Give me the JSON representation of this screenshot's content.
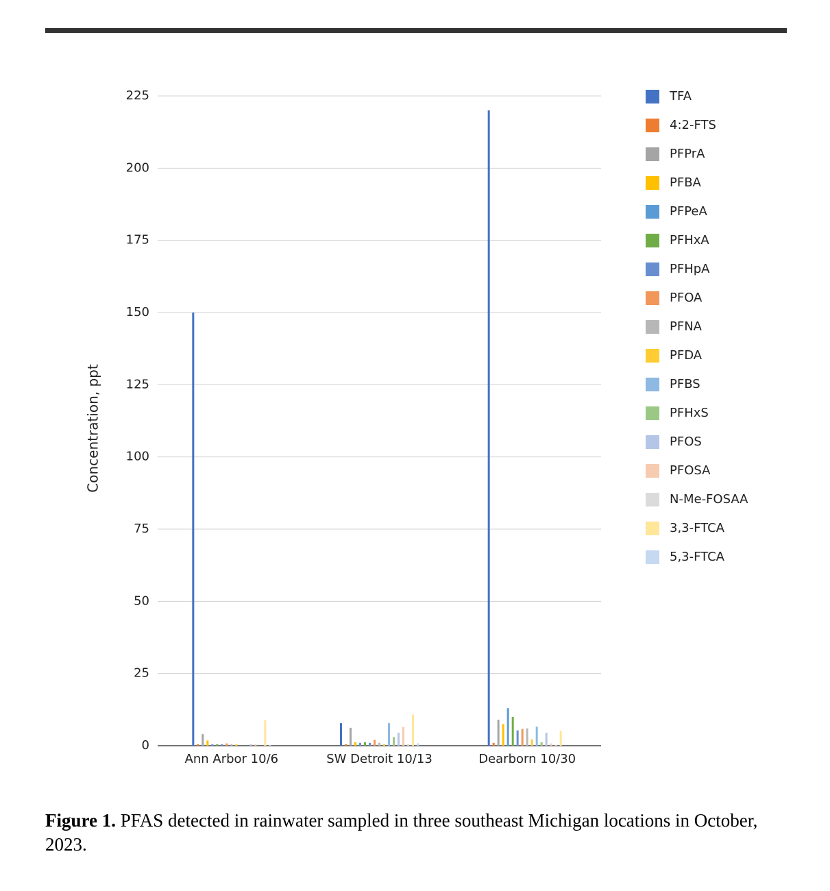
{
  "chart_data": {
    "type": "bar",
    "y_label": "Concentration, ppt",
    "categories": [
      "Ann Arbor 10/6",
      "SW Detroit 10/13",
      "Dearborn 10/30"
    ],
    "series": [
      {
        "name": "TFA",
        "color": "#4472c4",
        "values": [
          150,
          7.8,
          220
        ]
      },
      {
        "name": "4:2-FTS",
        "color": "#ed7d31",
        "values": [
          0.5,
          0.5,
          1
        ]
      },
      {
        "name": "PFPrA",
        "color": "#a5a5a5",
        "values": [
          4,
          6.2,
          9
        ]
      },
      {
        "name": "PFBA",
        "color": "#ffc000",
        "values": [
          1.8,
          1.2,
          7.5
        ]
      },
      {
        "name": "PFPeA",
        "color": "#5b9bd5",
        "values": [
          0.5,
          1,
          13
        ]
      },
      {
        "name": "PFHxA",
        "color": "#70ad47",
        "values": [
          0.5,
          1.2,
          10
        ]
      },
      {
        "name": "PFHpA",
        "color": "#698ed0",
        "values": [
          0.5,
          1,
          5.3
        ]
      },
      {
        "name": "PFOA",
        "color": "#f1975a",
        "values": [
          0.8,
          2,
          5.8
        ]
      },
      {
        "name": "PFNA",
        "color": "#b7b7b7",
        "values": [
          0.5,
          1,
          6
        ]
      },
      {
        "name": "PFDA",
        "color": "#ffcd33",
        "values": [
          0.5,
          0.5,
          2.2
        ]
      },
      {
        "name": "PFBS",
        "color": "#8db9e3",
        "values": [
          0,
          7.8,
          6.6
        ]
      },
      {
        "name": "PFHxS",
        "color": "#9bc985",
        "values": [
          0,
          3,
          1.2
        ]
      },
      {
        "name": "PFOS",
        "color": "#b4c6e7",
        "values": [
          0.5,
          4.5,
          4.5
        ]
      },
      {
        "name": "PFOSA",
        "color": "#f6cbb0",
        "values": [
          0.5,
          6.5,
          0.8
        ]
      },
      {
        "name": "N-Me-FOSAA",
        "color": "#dbdbdb",
        "values": [
          0,
          0.5,
          0.3
        ]
      },
      {
        "name": "3,3-FTCA",
        "color": "#ffe699",
        "values": [
          8.8,
          10.8,
          5.2
        ]
      },
      {
        "name": "5,3-FTCA",
        "color": "#c5d9f0",
        "values": [
          0.3,
          0.8,
          0
        ]
      }
    ],
    "ylim": [
      0,
      225
    ],
    "yticks": [
      0,
      25,
      50,
      75,
      100,
      125,
      150,
      175,
      200,
      225
    ],
    "grid": true,
    "legend": "right"
  },
  "caption": {
    "label": "Figure 1.",
    "text": "PFAS detected in rainwater sampled in three southeast Michigan locations in October, 2023."
  }
}
